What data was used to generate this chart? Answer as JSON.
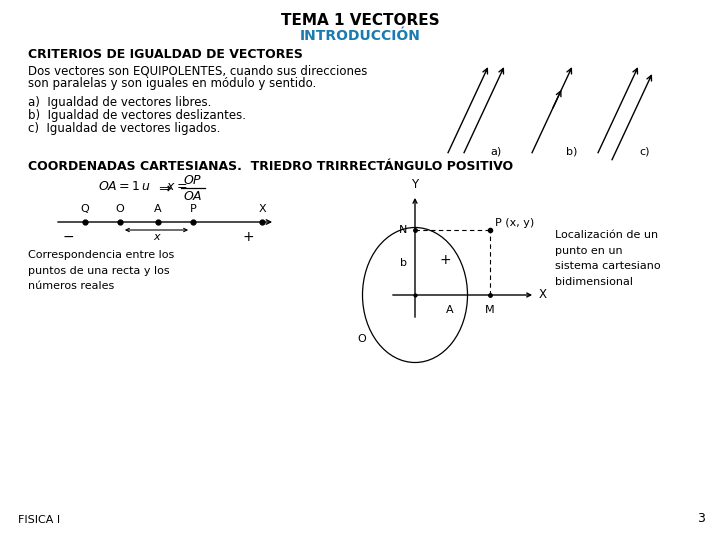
{
  "title": "TEMA 1 VECTORES",
  "subtitle": "INTRODUCCIÓN",
  "subtitle_color": "#1A7BB0",
  "section1_title": "CRITERIOS DE IGUALDAD DE VECTORES",
  "section1_text1": "Dos vectores son EQUIPOLENTES, cuando sus direcciones",
  "section1_text2": "son paralelas y son iguales en módulo y sentido.",
  "section1_list": [
    "a)  Igualdad de vectores libres.",
    "b)  Igualdad de vectores deslizantes.",
    "c)  Igualdad de vectores ligados."
  ],
  "section2_title": "COORDENADAS CARTESIANAS.  TRIEDRO TRIRRECTÁNGULO POSITIVO",
  "corr_text": "Correspondencia entre los\npuntos de una recta y los\nnúmeros reales",
  "loc_text": "Localización de un\npunto en un\nsistema cartesiano\nbidimensional",
  "footer": "FISICA I",
  "page_num": "3",
  "bg_color": "#ffffff",
  "text_color": "#000000"
}
